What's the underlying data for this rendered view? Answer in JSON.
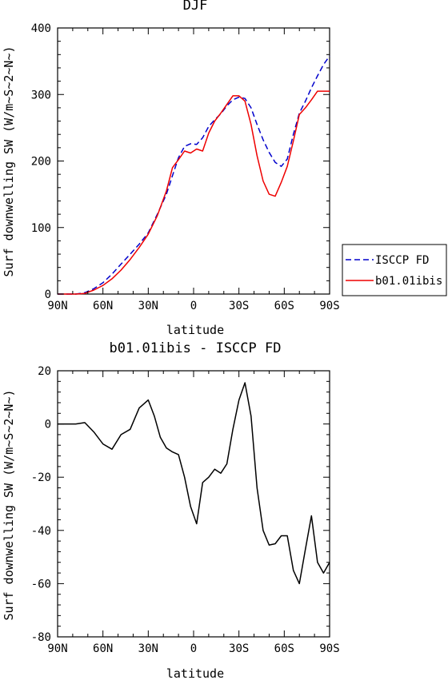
{
  "chart_data": [
    {
      "type": "line",
      "title": "DJF",
      "xlabel": "latitude",
      "ylabel": "Surf downwelling SW (W/m~S~2~N~)",
      "x_ticks": [
        "90N",
        "60N",
        "30N",
        "0",
        "30S",
        "60S",
        "90S"
      ],
      "xlim": [
        -90,
        90
      ],
      "ylim": [
        0,
        400
      ],
      "y_ticks": [
        "0",
        "100",
        "200",
        "300",
        "400"
      ],
      "legend": {
        "placement": "right-outside",
        "entries": [
          "ISCCP FD",
          "b01.01ibis"
        ]
      },
      "x": [
        -90,
        -84,
        -78,
        -72,
        -66,
        -60,
        -54,
        -48,
        -42,
        -36,
        -30,
        -24,
        -18,
        -14,
        -10,
        -6,
        -2,
        2,
        6,
        10,
        14,
        18,
        22,
        26,
        30,
        34,
        38,
        42,
        46,
        50,
        54,
        58,
        62,
        66,
        70,
        74,
        78,
        82,
        86,
        90
      ],
      "series": [
        {
          "name": "ISCCP FD",
          "color": "#0000cc",
          "dash": "dashed",
          "values": [
            0,
            0,
            0,
            2,
            8,
            17,
            30,
            45,
            60,
            75,
            92,
            120,
            150,
            178,
            205,
            222,
            226,
            225,
            235,
            252,
            262,
            271,
            283,
            292,
            296,
            294,
            280,
            255,
            232,
            213,
            198,
            192,
            203,
            240,
            272,
            290,
            310,
            328,
            345,
            358
          ]
        },
        {
          "name": "b01.01ibis",
          "color": "#ee0000",
          "dash": "solid",
          "values": [
            0,
            0,
            0,
            1,
            6,
            13,
            23,
            36,
            52,
            70,
            90,
            118,
            155,
            190,
            202,
            215,
            212,
            218,
            215,
            242,
            260,
            272,
            285,
            298,
            298,
            290,
            255,
            208,
            170,
            150,
            147,
            168,
            192,
            230,
            270,
            280,
            292,
            305,
            305,
            305
          ]
        }
      ]
    },
    {
      "type": "line",
      "title": "b01.01ibis - ISCCP FD",
      "xlabel": "latitude",
      "ylabel": "Surf downwelling SW (W/m~S~2~N~)",
      "x_ticks": [
        "90N",
        "60N",
        "30N",
        "0",
        "30S",
        "60S",
        "90S"
      ],
      "xlim": [
        -90,
        90
      ],
      "ylim": [
        -80,
        20
      ],
      "y_ticks": [
        "-80",
        "-60",
        "-40",
        "-20",
        "0",
        "20"
      ],
      "x": [
        -90,
        -84,
        -78,
        -72,
        -66,
        -60,
        -54,
        -48,
        -42,
        -36,
        -30,
        -26,
        -22,
        -18,
        -14,
        -10,
        -6,
        -2,
        2,
        6,
        10,
        14,
        18,
        22,
        26,
        30,
        34,
        38,
        42,
        46,
        50,
        54,
        58,
        62,
        66,
        70,
        74,
        78,
        82,
        86,
        90
      ],
      "series": [
        {
          "color": "#000000",
          "dash": "solid",
          "values": [
            0,
            0,
            0,
            0.5,
            -3,
            -7.5,
            -9.5,
            -4,
            -2,
            6,
            9,
            3,
            -5,
            -9,
            -10.5,
            -11.5,
            -20,
            -31,
            -37.5,
            -22,
            -20,
            -17,
            -18.5,
            -15,
            -2,
            9,
            15.5,
            3,
            -24,
            -40,
            -45.5,
            -45,
            -42,
            -42,
            -55,
            -60,
            -47,
            -34.5,
            -52,
            -56,
            -52
          ]
        }
      ]
    }
  ]
}
